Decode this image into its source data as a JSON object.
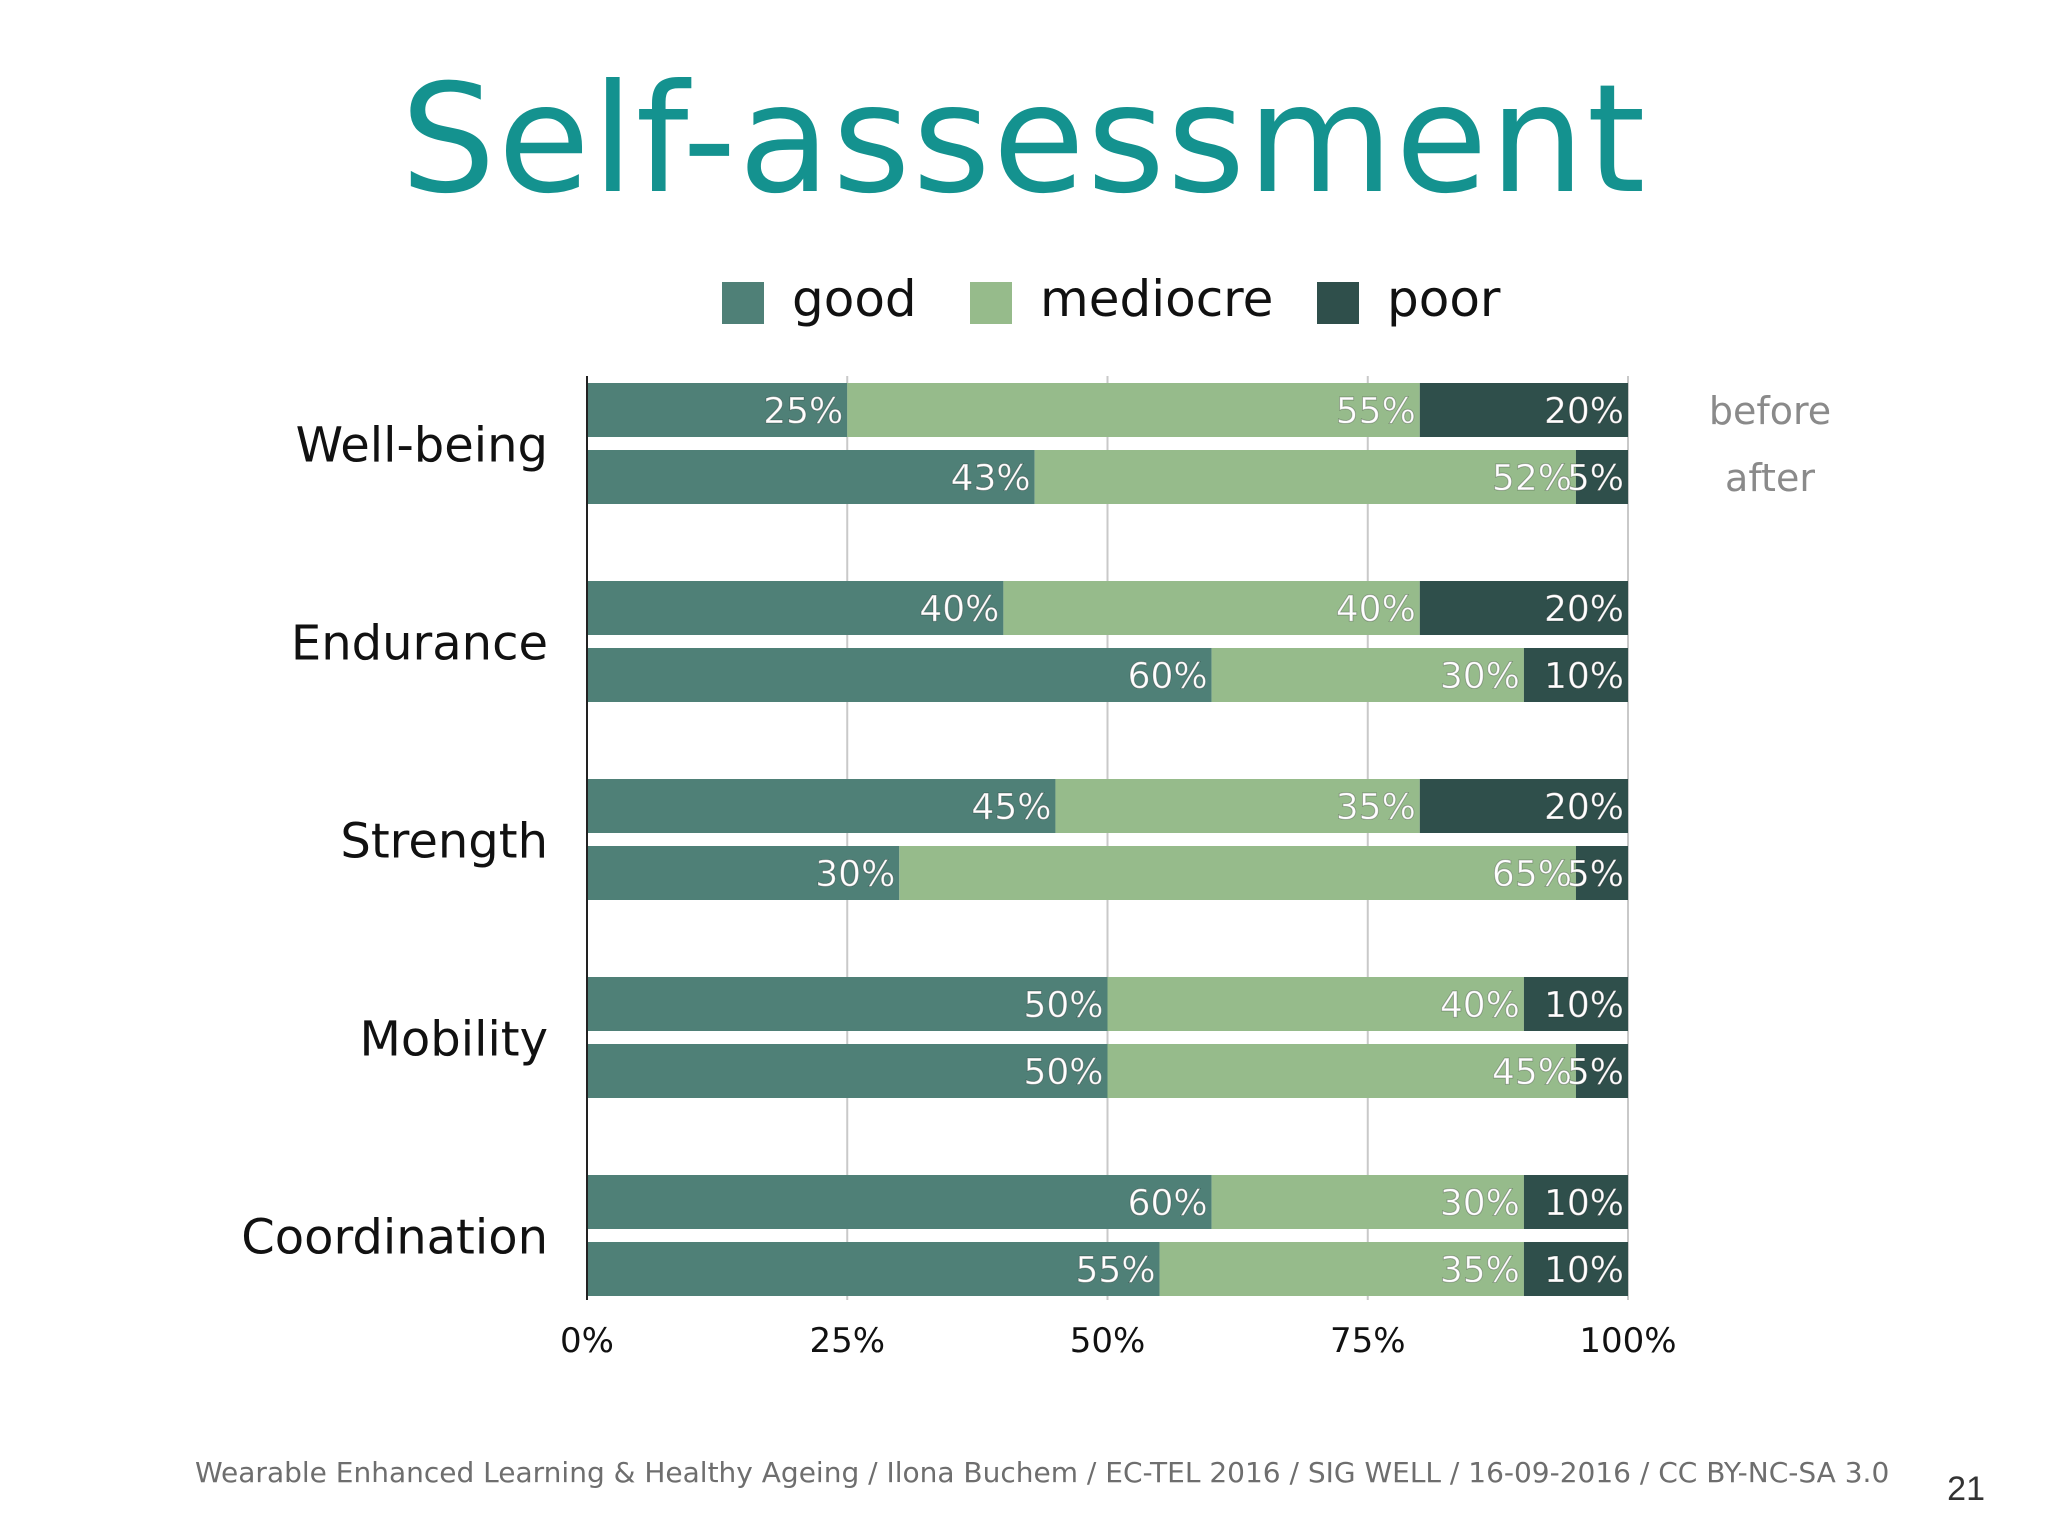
{
  "slide": {
    "title": "Self-assessment",
    "footer": "Wearable Enhanced Learning & Healthy Ageing / Ilona Buchem / EC-TEL 2016 / SIG WELL / 16-09-2016 / CC BY-NC-SA 3.0",
    "page_number": "21"
  },
  "chart_data": {
    "type": "bar",
    "orientation": "horizontal",
    "stacked": true,
    "normalized": true,
    "title": "",
    "xlabel": "",
    "ylabel": "",
    "xlim": [
      0,
      100
    ],
    "x_ticks": [
      "0%",
      "25%",
      "50%",
      "75%",
      "100%"
    ],
    "grid": true,
    "legend_position": "top",
    "legend": [
      "good",
      "mediocre",
      "poor"
    ],
    "row_labels": [
      "before",
      "after"
    ],
    "colors": {
      "good": "#4f8077",
      "mediocre": "#96bb8b",
      "poor": "#2f4f4b"
    },
    "categories": [
      "Well-being",
      "Endurance",
      "Strength",
      "Mobility",
      "Coordination"
    ],
    "groups": [
      {
        "category": "Well-being",
        "bars": [
          {
            "row": "before",
            "values": [
              25,
              55,
              20
            ],
            "labels": [
              "25%",
              "55%",
              "20%"
            ]
          },
          {
            "row": "after",
            "values": [
              43,
              52,
              5
            ],
            "labels": [
              "43%",
              "52%",
              "5%"
            ]
          }
        ]
      },
      {
        "category": "Endurance",
        "bars": [
          {
            "row": "before",
            "values": [
              40,
              40,
              20
            ],
            "labels": [
              "40%",
              "40%",
              "20%"
            ]
          },
          {
            "row": "after",
            "values": [
              60,
              30,
              10
            ],
            "labels": [
              "60%",
              "30%",
              "10%"
            ]
          }
        ]
      },
      {
        "category": "Strength",
        "bars": [
          {
            "row": "before",
            "values": [
              45,
              35,
              20
            ],
            "labels": [
              "45%",
              "35%",
              "20%"
            ]
          },
          {
            "row": "after",
            "values": [
              30,
              65,
              5
            ],
            "labels": [
              "30%",
              "65%",
              "5%"
            ]
          }
        ]
      },
      {
        "category": "Mobility",
        "bars": [
          {
            "row": "before",
            "values": [
              50,
              40,
              10
            ],
            "labels": [
              "50%",
              "40%",
              "10%"
            ]
          },
          {
            "row": "after",
            "values": [
              50,
              45,
              5
            ],
            "labels": [
              "50%",
              "45%",
              "5%"
            ]
          }
        ]
      },
      {
        "category": "Coordination",
        "bars": [
          {
            "row": "before",
            "values": [
              60,
              30,
              10
            ],
            "labels": [
              "60%",
              "30%",
              "10%"
            ]
          },
          {
            "row": "after",
            "values": [
              55,
              35,
              10
            ],
            "labels": [
              "55%",
              "35%",
              "10%"
            ]
          }
        ]
      }
    ]
  }
}
